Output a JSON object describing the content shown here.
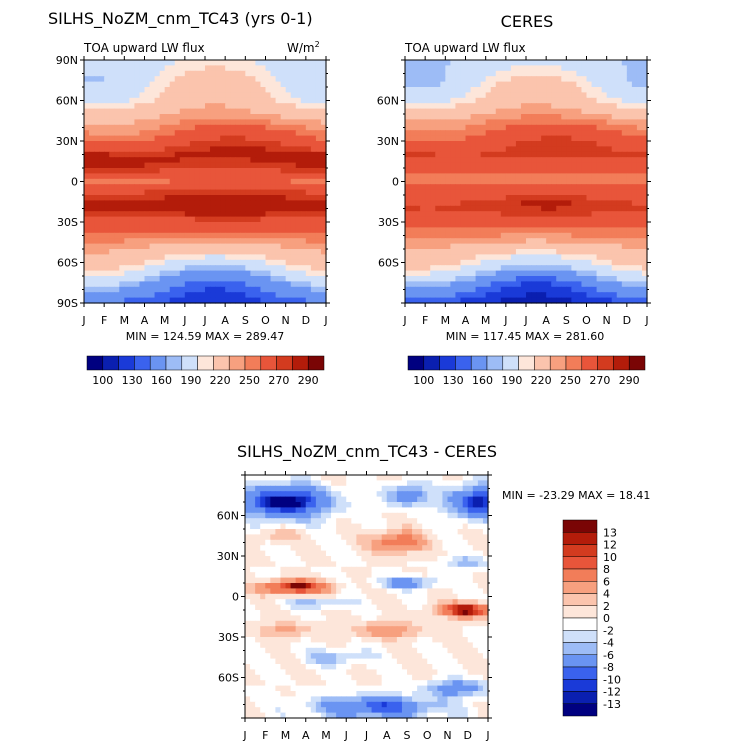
{
  "colors": {
    "abs_levels": [
      "#000080",
      "#0a1fb0",
      "#1a3ad8",
      "#3a62ee",
      "#6a94f2",
      "#9dbcf6",
      "#cfe0fa",
      "#fde6da",
      "#fbc4ad",
      "#f7a07f",
      "#f27d59",
      "#e8553a",
      "#d33b1f",
      "#b31c0a",
      "#7a0505"
    ],
    "diff_levels": [
      "#000080",
      "#0a1fb0",
      "#1a3ad8",
      "#3a62ee",
      "#6a94f2",
      "#9dbcf6",
      "#cfe0fa",
      "#ffffff",
      "#fde6da",
      "#fbc4ad",
      "#f7a07f",
      "#f27d59",
      "#e8553a",
      "#d33b1f",
      "#b31c0a",
      "#7a0505"
    ]
  },
  "chart_data": [
    {
      "type": "heatmap",
      "title": "SILHS_NoZM_cnm_TC43 (yrs 0-1)",
      "subtitle": "TOA upward LW flux",
      "units_base": "W/m",
      "units_exp": "2",
      "x_ticks": [
        "J",
        "F",
        "M",
        "A",
        "M",
        "J",
        "J",
        "A",
        "S",
        "O",
        "N",
        "D",
        "J"
      ],
      "y_ticks": [
        "90N",
        "60N",
        "30N",
        "0",
        "30S",
        "60S",
        "90S"
      ],
      "y_values": [
        90,
        60,
        30,
        0,
        -30,
        -60,
        -90
      ],
      "ylim": [
        -90,
        90
      ],
      "min_max": "MIN = 124.59   MAX = 289.47",
      "min": 124.59,
      "max": 289.47,
      "colorbar_labels": [
        "100",
        "130",
        "160",
        "190",
        "220",
        "250",
        "270",
        "290"
      ],
      "contour_levels": [
        100,
        110,
        120,
        130,
        140,
        150,
        160,
        170,
        180,
        190,
        200,
        210,
        220,
        230,
        240,
        250,
        260,
        270,
        280,
        290
      ],
      "field": {
        "lat_profile": [
          [
            90,
            185
          ],
          [
            75,
            190
          ],
          [
            60,
            200
          ],
          [
            45,
            225
          ],
          [
            30,
            250
          ],
          [
            18,
            276
          ],
          [
            10,
            265
          ],
          [
            0,
            240
          ],
          [
            -8,
            262
          ],
          [
            -18,
            282
          ],
          [
            -30,
            255
          ],
          [
            -45,
            225
          ],
          [
            -60,
            195
          ],
          [
            -75,
            155
          ],
          [
            -90,
            130
          ]
        ],
        "seasonal": [
          {
            "lat": 70,
            "amp": 22,
            "phase": 6.5,
            "width": 20
          },
          {
            "lat": -70,
            "amp": -22,
            "phase": 6.5,
            "width": 20
          },
          {
            "lat": 30,
            "amp": 14,
            "phase": 7.5,
            "width": 14
          },
          {
            "lat": 15,
            "amp": -10,
            "phase": 7,
            "width": 8
          },
          {
            "lat": -15,
            "amp": 8,
            "phase": 7,
            "width": 9
          }
        ]
      }
    },
    {
      "type": "heatmap",
      "title": "CERES",
      "subtitle": "TOA upward LW flux",
      "x_ticks": [
        "J",
        "F",
        "M",
        "A",
        "M",
        "J",
        "J",
        "A",
        "S",
        "O",
        "N",
        "D",
        "J"
      ],
      "y_ticks": [
        "",
        "60N",
        "30N",
        "0",
        "30S",
        "60S",
        ""
      ],
      "y_values": [
        90,
        60,
        30,
        0,
        -30,
        -60,
        -90
      ],
      "ylim": [
        -90,
        90
      ],
      "min_max": "MIN = 117.45   MAX = 281.60",
      "min": 117.45,
      "max": 281.6,
      "colorbar_labels": [
        "100",
        "130",
        "160",
        "190",
        "220",
        "250",
        "270",
        "290"
      ],
      "contour_levels": [
        100,
        110,
        120,
        130,
        140,
        150,
        160,
        170,
        180,
        190,
        200,
        210,
        220,
        230,
        240,
        250,
        260,
        270,
        280,
        290
      ],
      "field": {
        "lat_profile": [
          [
            90,
            175
          ],
          [
            75,
            185
          ],
          [
            60,
            200
          ],
          [
            45,
            228
          ],
          [
            30,
            252
          ],
          [
            20,
            262
          ],
          [
            10,
            245
          ],
          [
            0,
            235
          ],
          [
            -8,
            250
          ],
          [
            -18,
            268
          ],
          [
            -30,
            250
          ],
          [
            -45,
            222
          ],
          [
            -60,
            193
          ],
          [
            -75,
            150
          ],
          [
            -90,
            122
          ]
        ],
        "seasonal": [
          {
            "lat": 70,
            "amp": 22,
            "phase": 6.5,
            "width": 20
          },
          {
            "lat": -70,
            "amp": -22,
            "phase": 6.5,
            "width": 20
          },
          {
            "lat": 30,
            "amp": 12,
            "phase": 7.5,
            "width": 14
          },
          {
            "lat": 15,
            "amp": -8,
            "phase": 7,
            "width": 8
          },
          {
            "lat": -15,
            "amp": 7,
            "phase": 7,
            "width": 9
          }
        ]
      }
    },
    {
      "type": "heatmap",
      "title": "SILHS_NoZM_cnm_TC43 - CERES",
      "x_ticks": [
        "J",
        "F",
        "M",
        "A",
        "M",
        "J",
        "J",
        "A",
        "S",
        "O",
        "N",
        "D",
        "J"
      ],
      "y_ticks": [
        "",
        "60N",
        "30N",
        "0",
        "30S",
        "60S",
        ""
      ],
      "y_values": [
        90,
        60,
        30,
        0,
        -30,
        -60,
        -90
      ],
      "ylim": [
        -90,
        90
      ],
      "min_max": "MIN = -23.29   MAX =  18.41",
      "min": -23.29,
      "max": 18.41,
      "colorbar_labels": [
        "13",
        "12",
        "10",
        "8",
        "6",
        "4",
        "2",
        "0",
        "-2",
        "-4",
        "-6",
        "-8",
        "-10",
        "-12",
        "-13"
      ],
      "contour_levels": [
        -14,
        -13,
        -12,
        -10,
        -8,
        -6,
        -4,
        -2,
        0,
        2,
        4,
        6,
        8,
        10,
        12,
        13,
        14
      ],
      "field": {
        "blobs": [
          {
            "x": 2.5,
            "lat": 7,
            "sx": 1.6,
            "sy": 5,
            "amp": 15
          },
          {
            "x": 11.0,
            "lat": -10,
            "sx": 1.4,
            "sy": 5,
            "amp": 16
          },
          {
            "x": 7.5,
            "lat": 40,
            "sx": 1.3,
            "sy": 8,
            "amp": 9
          },
          {
            "x": 7.0,
            "lat": -25,
            "sx": 1.8,
            "sy": 6,
            "amp": 6
          },
          {
            "x": 2.0,
            "lat": -25,
            "sx": 1.2,
            "sy": 6,
            "amp": 5
          },
          {
            "x": 2.0,
            "lat": 70,
            "sx": 2.2,
            "sy": 12,
            "amp": -16
          },
          {
            "x": 11.5,
            "lat": 70,
            "sx": 1.5,
            "sy": 12,
            "amp": -14
          },
          {
            "x": 8.0,
            "lat": 75,
            "sx": 1.0,
            "sy": 8,
            "amp": -9
          },
          {
            "x": 6.5,
            "lat": -82,
            "sx": 3.0,
            "sy": 8,
            "amp": -12
          },
          {
            "x": 10.5,
            "lat": -68,
            "sx": 1.5,
            "sy": 6,
            "amp": -9
          },
          {
            "x": 8.0,
            "lat": 10,
            "sx": 1.5,
            "sy": 4,
            "amp": -8
          },
          {
            "x": 3.5,
            "lat": -5,
            "sx": 1.5,
            "sy": 4,
            "amp": -5
          },
          {
            "x": 11.0,
            "lat": 25,
            "sx": 1.2,
            "sy": 5,
            "amp": -5
          },
          {
            "x": 4.5,
            "lat": -45,
            "sx": 1.5,
            "sy": 6,
            "amp": -5
          },
          {
            "x": 1.5,
            "lat": 45,
            "sx": 1.0,
            "sy": 5,
            "amp": 4
          }
        ]
      }
    }
  ]
}
